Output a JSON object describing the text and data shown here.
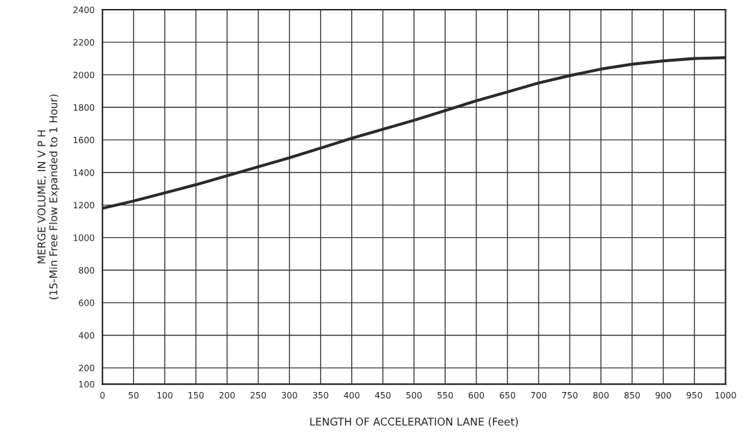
{
  "chart_data": {
    "type": "line",
    "xlabel": "LENGTH OF ACCELERATION LANE (Feet)",
    "ylabel": "MERGE VOLUME, IN V P H\n(15-Min Free Flow Expanded to 1 Hour)",
    "x": [
      0,
      50,
      100,
      150,
      200,
      250,
      300,
      350,
      400,
      450,
      500,
      550,
      600,
      650,
      700,
      750,
      800,
      850,
      900,
      950,
      1000
    ],
    "series": [
      {
        "color": "#2a2a2a",
        "values": [
          1180,
          1225,
          1275,
          1325,
          1380,
          1435,
          1490,
          1550,
          1610,
          1665,
          1720,
          1780,
          1840,
          1895,
          1950,
          1995,
          2035,
          2065,
          2085,
          2100,
          2105
        ]
      }
    ],
    "xlim": [
      0,
      1000
    ],
    "xticks": [
      0,
      50,
      100,
      150,
      200,
      250,
      300,
      350,
      400,
      450,
      500,
      550,
      600,
      650,
      700,
      750,
      800,
      850,
      900,
      950,
      1000
    ],
    "ylim": [
      100,
      2400
    ],
    "yticks": [
      100,
      200,
      400,
      600,
      800,
      1000,
      1200,
      1400,
      1600,
      1800,
      2000,
      2200,
      2400
    ],
    "grid": true,
    "line_style": "solid",
    "marker": "none"
  }
}
